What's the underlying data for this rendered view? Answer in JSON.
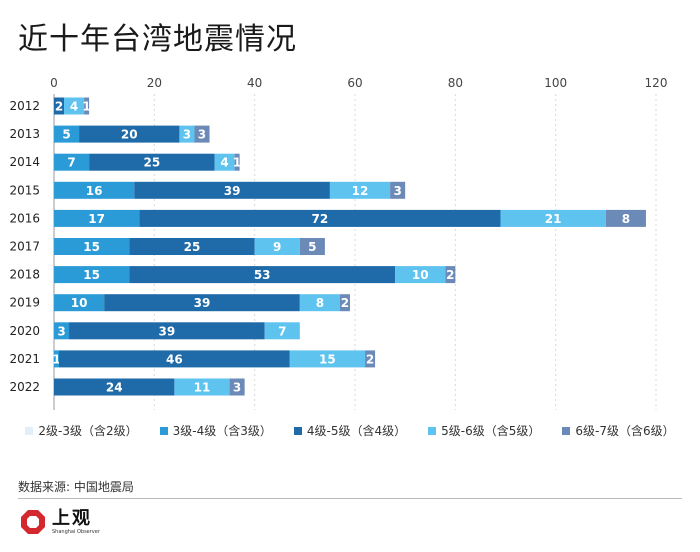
{
  "chart_data": {
    "type": "bar",
    "orientation": "horizontal",
    "stacked": true,
    "title": "近十年台湾地震情况",
    "xlim": [
      0,
      120
    ],
    "xticks": [
      0,
      20,
      40,
      60,
      80,
      100,
      120
    ],
    "categories": [
      "2012",
      "2013",
      "2014",
      "2015",
      "2016",
      "2017",
      "2018",
      "2019",
      "2020",
      "2021",
      "2022"
    ],
    "series": [
      {
        "name": "2级-3级（含2级）",
        "color": "#dff0fb",
        "values": [
          0,
          0,
          0,
          0,
          0,
          0,
          0,
          0,
          0,
          0,
          0
        ]
      },
      {
        "name": "3级-4级（含3级）",
        "color": "#2b9bd8",
        "values": [
          0,
          5,
          7,
          16,
          17,
          15,
          15,
          10,
          3,
          1,
          0
        ]
      },
      {
        "name": "4级-5级（含4级）",
        "color": "#1f6aa8",
        "values": [
          2,
          20,
          25,
          39,
          72,
          25,
          53,
          39,
          39,
          46,
          24
        ]
      },
      {
        "name": "5级-6级（含5级）",
        "color": "#5ec3ef",
        "values": [
          4,
          3,
          4,
          12,
          21,
          9,
          10,
          8,
          7,
          15,
          11
        ]
      },
      {
        "name": "6级-7级（含6级）",
        "color": "#6b8ab8",
        "values": [
          1,
          3,
          1,
          3,
          8,
          5,
          2,
          2,
          0,
          2,
          3
        ]
      }
    ],
    "legend_position": "bottom",
    "grid": true
  },
  "source_note": "数据来源: 中国地震局",
  "brand": {
    "name": "上观",
    "tagline": "Shanghai Observer"
  }
}
